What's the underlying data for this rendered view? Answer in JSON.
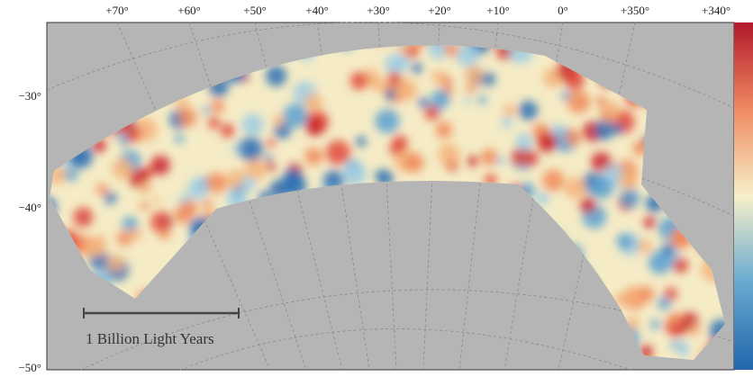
{
  "top_labels": [
    "+70°",
    "+60°",
    "+50°",
    "+40°",
    "+30°",
    "+20°",
    "+10°",
    "0°",
    "+350°",
    "+340°"
  ],
  "left_labels": [
    "−30°",
    "−40°",
    "−50°"
  ],
  "scale_bar": {
    "label": "1 Billion Light Years"
  }
}
